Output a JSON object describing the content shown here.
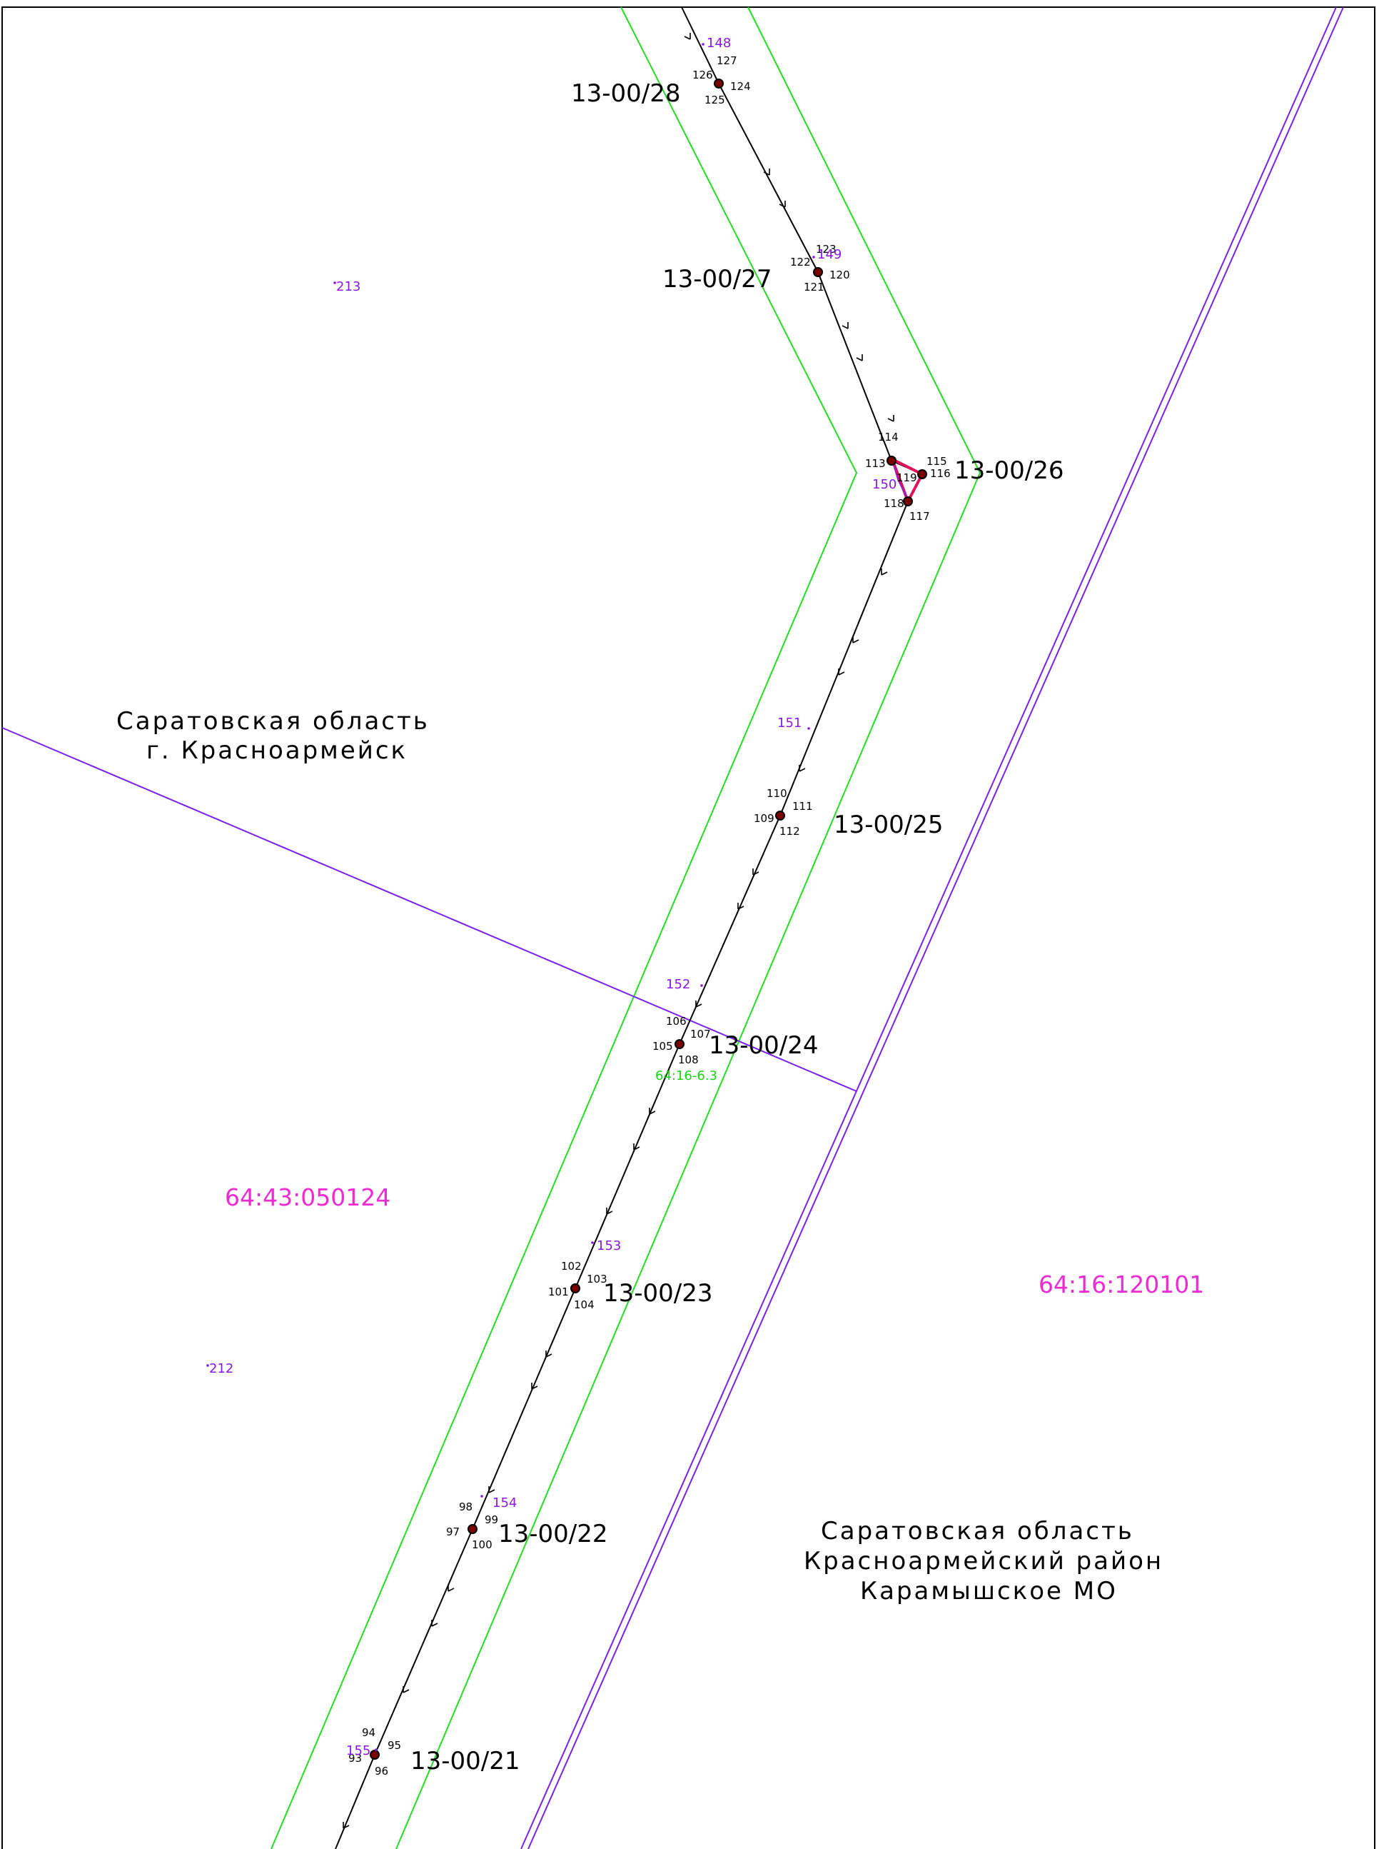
{
  "colors": {
    "frame": "#000000",
    "zone_boundary": "#22dd22",
    "admin_boundary": "#7a22e8",
    "line": "#000000",
    "pole_fill": "#7a0000",
    "marker": "#8a18e8",
    "cadastral": "#ee2bd2",
    "highlight": "#e0105a"
  },
  "regions": {
    "city": {
      "lines": [
        "Саратовская область",
        "г. Красноармейск"
      ]
    },
    "district": {
      "lines": [
        "Саратовская область",
        "Красноармейский район",
        "Карамышское МО"
      ]
    }
  },
  "cadastral": {
    "quarter_left": "64:43:050124",
    "quarter_right": "64:16:120101",
    "zone": "64:16-6.3"
  },
  "poles": [
    {
      "label": "13-00/28",
      "points": [
        "127",
        "126",
        "124",
        "125"
      ],
      "marker": "148"
    },
    {
      "label": "13-00/27",
      "points": [
        "123",
        "122",
        "120",
        "121"
      ],
      "marker": "149"
    },
    {
      "label": "13-00/26",
      "points": [
        "114",
        "113",
        "115",
        "116",
        "119",
        "118",
        "117"
      ],
      "marker": "150"
    },
    {
      "label": "13-00/25",
      "points": [
        "110",
        "111",
        "109",
        "112"
      ],
      "marker": "151"
    },
    {
      "label": "13-00/24",
      "points": [
        "106",
        "107",
        "105",
        "108"
      ],
      "marker": "152"
    },
    {
      "label": "13-00/23",
      "points": [
        "102",
        "103",
        "101",
        "104"
      ],
      "marker": "153"
    },
    {
      "label": "13-00/22",
      "points": [
        "98",
        "99",
        "97",
        "100"
      ],
      "marker": "154"
    },
    {
      "label": "13-00/21",
      "points": [
        "94",
        "95",
        "93",
        "96"
      ],
      "marker": "155"
    }
  ],
  "markers_free": [
    "213",
    "212"
  ]
}
